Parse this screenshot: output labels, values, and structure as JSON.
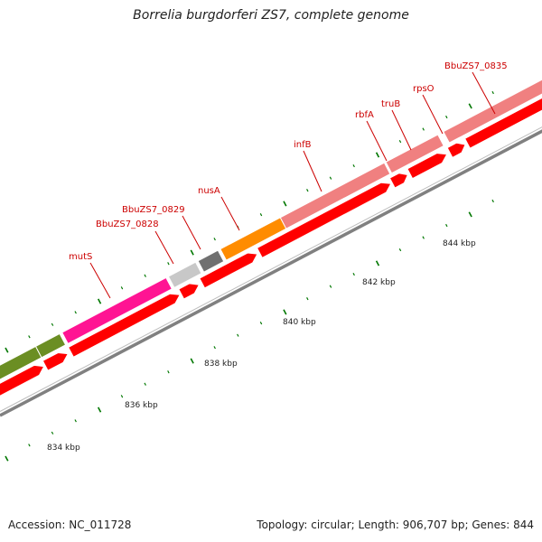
{
  "title": "Borrelia burgdorferi ZS7, complete genome",
  "footer": {
    "accession": "Accession: NC_011728",
    "summary": "Topology: circular; Length: 906,707 bp; Genes: 844"
  },
  "colors": {
    "background": "#ffffff",
    "backbone": "#808080",
    "orf_arrow": "#ff0000",
    "gene_label": "#cc0000",
    "tick": "#007700",
    "olive_gene": "#6b8e23",
    "magenta_gene": "#ff1493",
    "light_gray_gene": "#c8c8c8",
    "dark_gray_gene": "#707070",
    "orange_gene": "#ff8c00",
    "salmon_gene": "#f08080"
  },
  "gene_labels": [
    {
      "name": "mutS"
    },
    {
      "name": "BbuZS7_0828"
    },
    {
      "name": "BbuZS7_0829"
    },
    {
      "name": "nusA"
    },
    {
      "name": "infB"
    },
    {
      "name": "rbfA"
    },
    {
      "name": "truB"
    },
    {
      "name": "rpsO"
    },
    {
      "name": "BbuZS7_0835"
    }
  ],
  "scale_labels": [
    {
      "text": "834 kbp"
    },
    {
      "text": "836 kbp"
    },
    {
      "text": "838 kbp"
    },
    {
      "text": "840 kbp"
    },
    {
      "text": "842 kbp"
    },
    {
      "text": "844 kbp"
    }
  ]
}
